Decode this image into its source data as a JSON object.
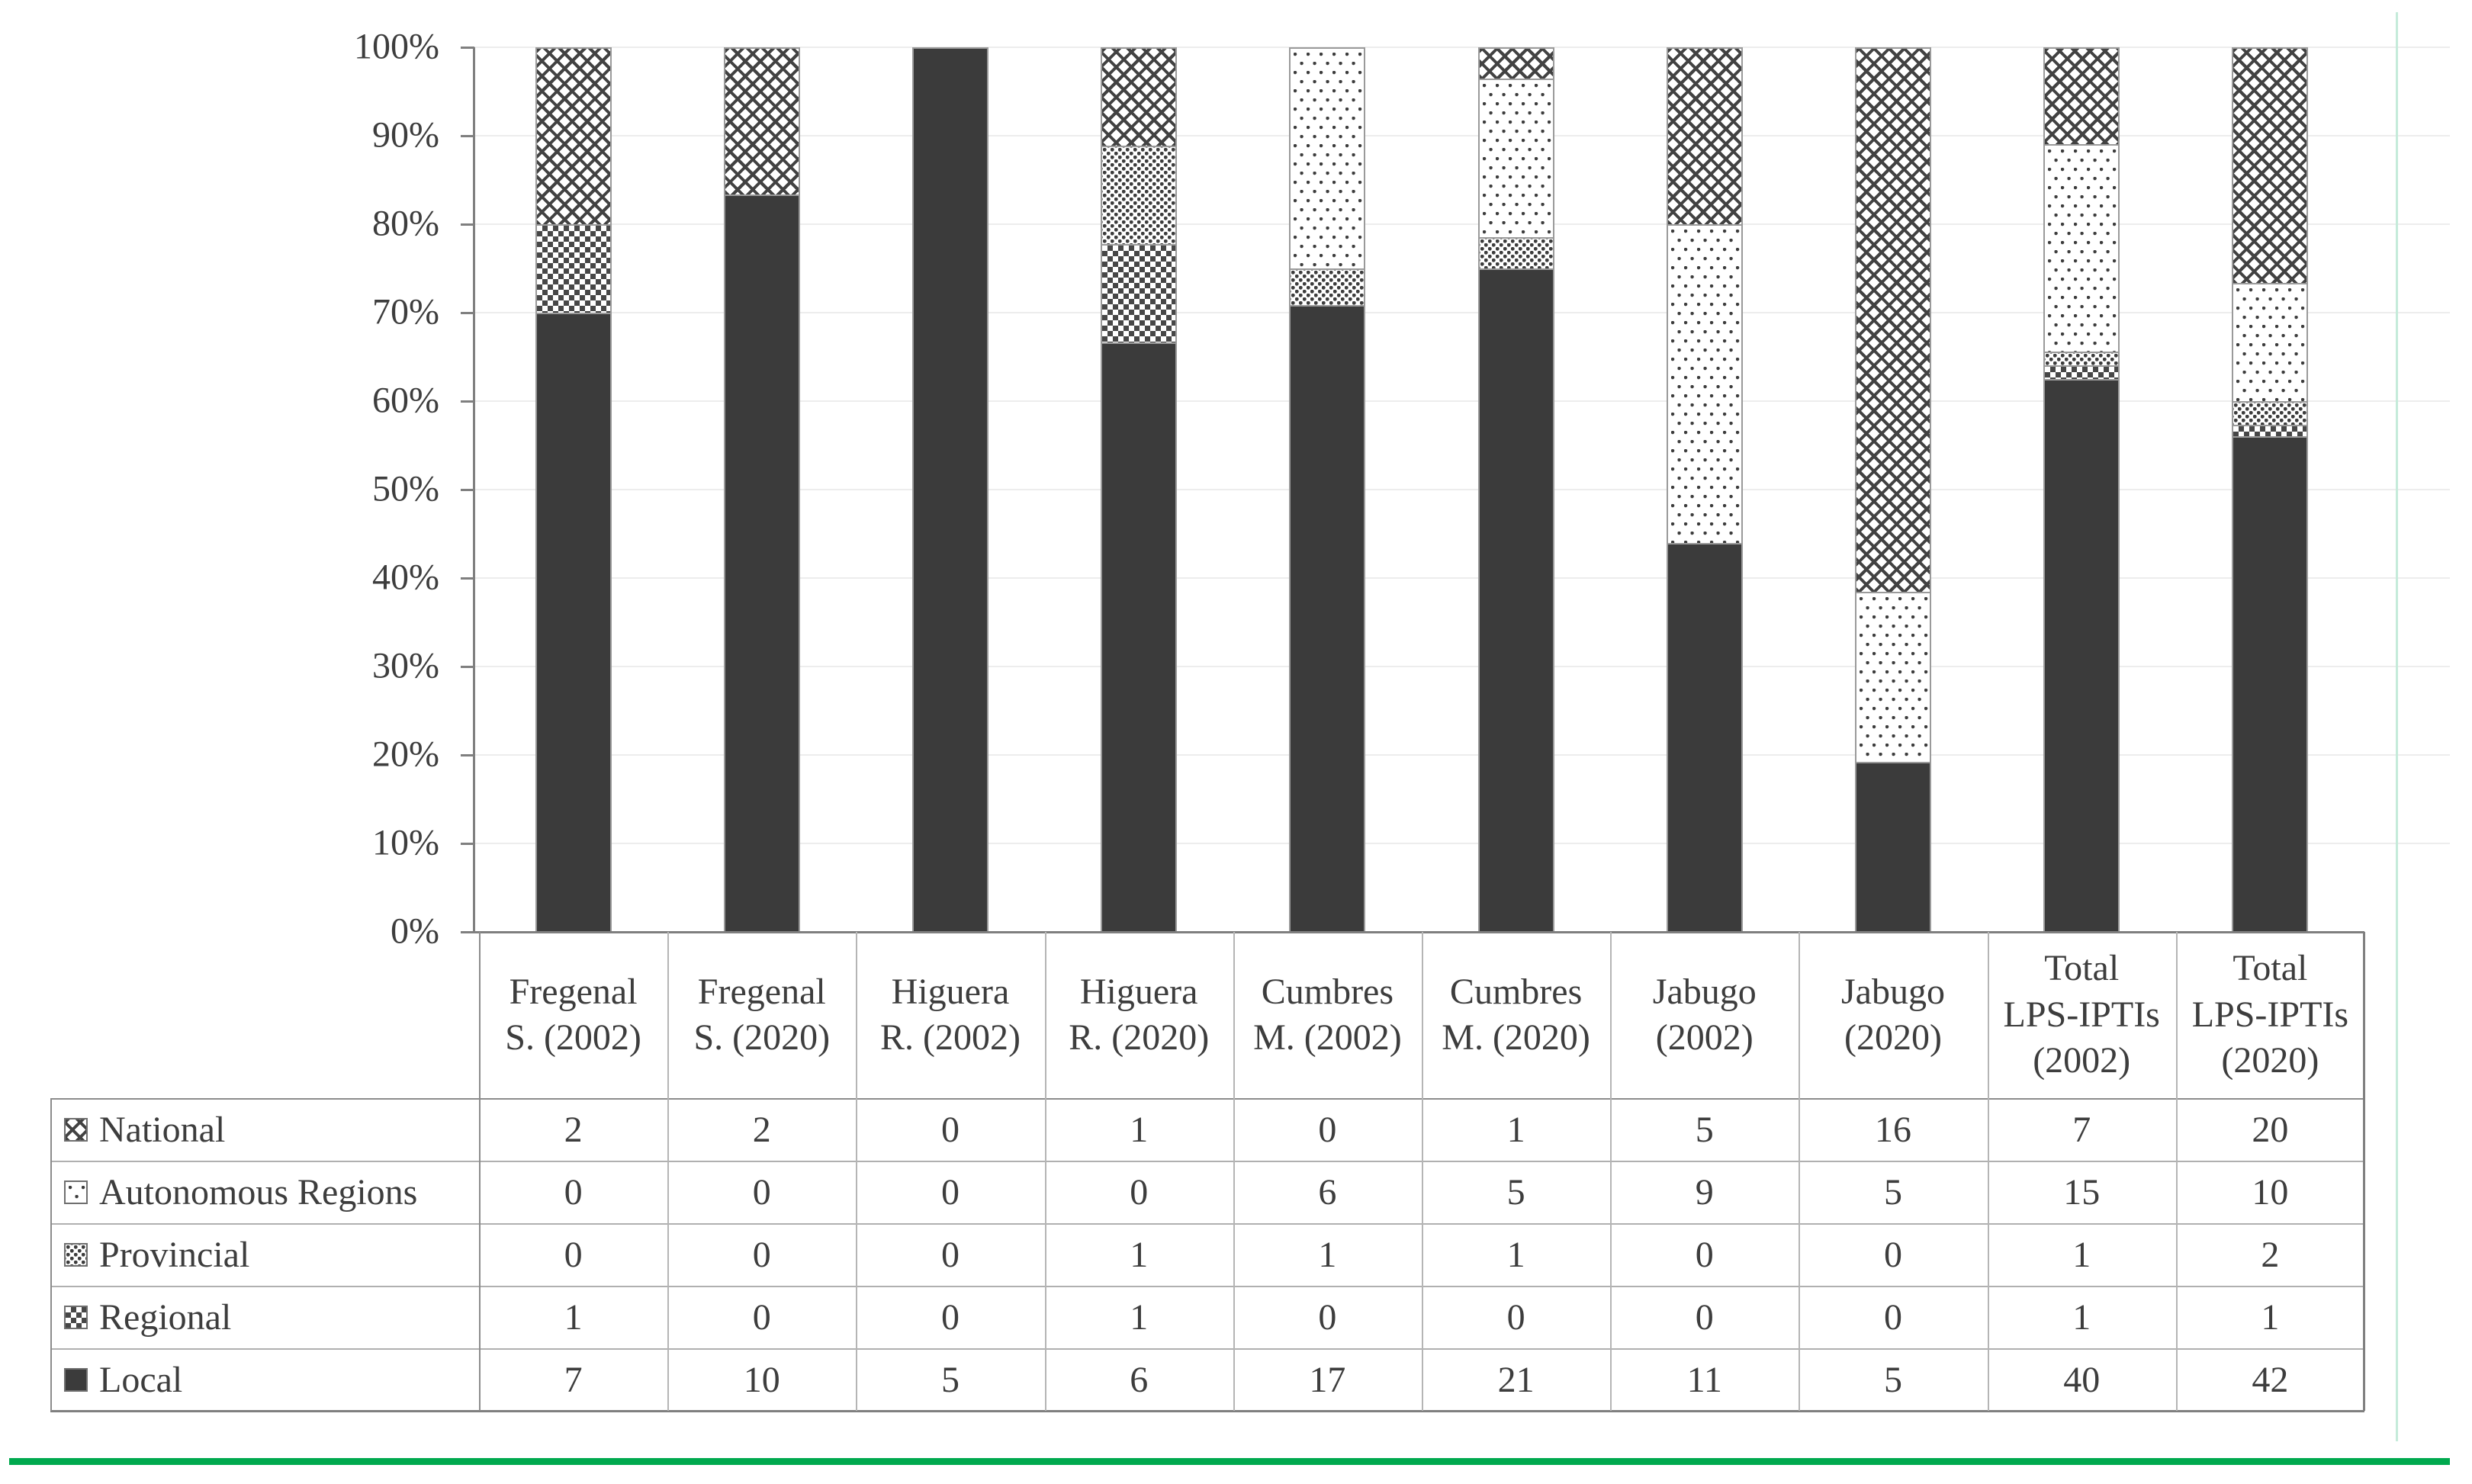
{
  "page": {
    "background": "#ffffff"
  },
  "chart_data": {
    "type": "bar",
    "stacking": "percent_100",
    "title": "",
    "xlabel": "",
    "ylabel": "",
    "y_axis": {
      "tick_labels": [
        "0%",
        "10%",
        "20%",
        "30%",
        "40%",
        "50%",
        "60%",
        "70%",
        "80%",
        "90%",
        "100%"
      ],
      "min": 0,
      "max": 100,
      "grid": true
    },
    "categories": [
      "Fregenal S. (2002)",
      "Fregenal S. (2020)",
      "Higuera R. (2002)",
      "Higuera R. (2020)",
      "Cumbres M. (2002)",
      "Cumbres M. (2020)",
      "Jabugo (2002)",
      "Jabugo (2020)",
      "Total LPS-IPTIs (2002)",
      "Total LPS-IPTIs (2020)"
    ],
    "category_label_lines": [
      [
        "Fregenal",
        "S. (2002)"
      ],
      [
        "Fregenal",
        "S. (2020)"
      ],
      [
        "Higuera",
        "R. (2002)"
      ],
      [
        "Higuera",
        "R. (2020)"
      ],
      [
        "Cumbres",
        "M. (2002)"
      ],
      [
        "Cumbres",
        "M. (2020)"
      ],
      [
        "Jabugo",
        "(2002)"
      ],
      [
        "Jabugo",
        "(2020)"
      ],
      [
        "Total",
        "LPS-IPTIs",
        "(2002)"
      ],
      [
        "Total",
        "LPS-IPTIs",
        "(2020)"
      ]
    ],
    "series": [
      {
        "name": "National",
        "pattern": "trellis-crosshatch",
        "values": [
          2,
          2,
          0,
          1,
          0,
          1,
          5,
          16,
          7,
          20
        ]
      },
      {
        "name": "Autonomous Regions",
        "pattern": "sparse-dots",
        "values": [
          0,
          0,
          0,
          0,
          6,
          5,
          9,
          5,
          15,
          10
        ]
      },
      {
        "name": "Provincial",
        "pattern": "dense-dots",
        "values": [
          0,
          0,
          0,
          1,
          1,
          1,
          0,
          0,
          1,
          2
        ]
      },
      {
        "name": "Regional",
        "pattern": "checkerboard",
        "values": [
          1,
          0,
          0,
          1,
          0,
          0,
          0,
          0,
          1,
          1
        ]
      },
      {
        "name": "Local",
        "pattern": "solid",
        "values": [
          7,
          10,
          5,
          6,
          17,
          21,
          11,
          5,
          40,
          42
        ]
      }
    ],
    "stack_order_bottom_to_top": [
      "Local",
      "Regional",
      "Provincial",
      "Autonomous Regions",
      "National"
    ],
    "legend_position": "data-table-left-column"
  },
  "colors": {
    "ink": "#3d3d3d",
    "bar_solid": "#3b3b3b",
    "pattern_ink": "#3f3f3f",
    "segment_border": "#9a9a9a",
    "axis": "#7f7f7f",
    "grid": "#ededed",
    "table_border_outer": "#7f7f7f",
    "table_border_inner": "#b5b5b5",
    "green_rule": "#00A94E",
    "green_guide": "#c5ebda"
  }
}
